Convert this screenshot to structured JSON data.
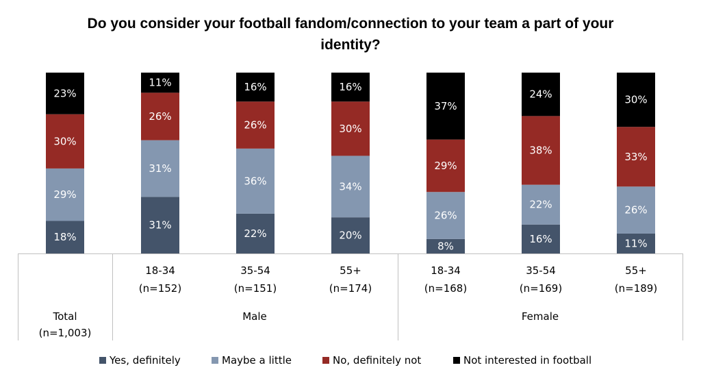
{
  "chart_data": {
    "type": "bar",
    "stacked": true,
    "title": "Do you consider your football fandom/connection to your team a part of your identity?",
    "categories": [
      {
        "label": "18-34",
        "n": "(n=152)",
        "group": "Male"
      },
      {
        "label": "35-54",
        "n": "(n=151)",
        "group": "Male"
      },
      {
        "label": "55+",
        "n": "(n=174)",
        "group": "Male"
      },
      {
        "label": "18-34",
        "n": "(n=168)",
        "group": "Female"
      },
      {
        "label": "35-54",
        "n": "(n=169)",
        "group": "Female"
      },
      {
        "label": "55+",
        "n": "(n=189)",
        "group": "Female"
      }
    ],
    "total": {
      "label": "Total",
      "n": "(n=1,003)"
    },
    "groups": [
      "Male",
      "Female"
    ],
    "series": [
      {
        "name": "Yes, definitely",
        "color": "#44546A",
        "label_color": "#ffffff",
        "total": 18,
        "values": [
          31,
          22,
          20,
          8,
          16,
          11
        ]
      },
      {
        "name": "Maybe a little",
        "color": "#8497B0",
        "label_color": "#ffffff",
        "total": 29,
        "values": [
          31,
          36,
          34,
          26,
          22,
          26
        ]
      },
      {
        "name": "No, definitely not",
        "color": "#952A25",
        "label_color": "#ffffff",
        "total": 30,
        "values": [
          26,
          26,
          30,
          29,
          38,
          33
        ]
      },
      {
        "name": "Not interested in football",
        "color": "#000000",
        "label_color": "#ffffff",
        "total": 23,
        "values": [
          11,
          16,
          16,
          37,
          24,
          30
        ]
      }
    ],
    "value_suffix": "%",
    "ylim": [
      0,
      100
    ],
    "legend_position": "bottom",
    "grid": false
  }
}
